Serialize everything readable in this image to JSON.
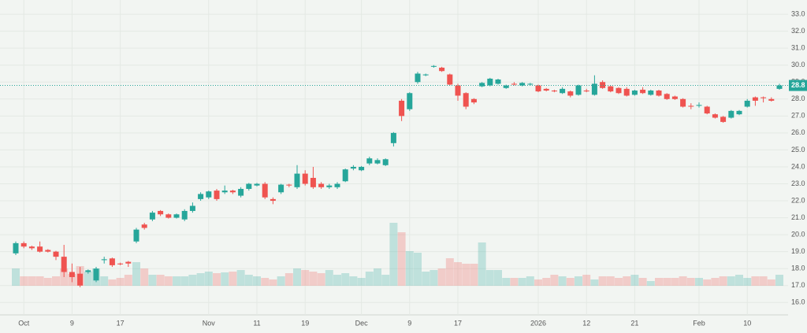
{
  "chart_data": {
    "type": "candlestick",
    "categories": [
      null,
      "Oct",
      null,
      null,
      null,
      null,
      null,
      "9",
      null,
      null,
      null,
      null,
      null,
      "17",
      null,
      null,
      null,
      null,
      null,
      null,
      null,
      null,
      null,
      null,
      "Nov",
      null,
      null,
      null,
      null,
      null,
      "11",
      null,
      null,
      null,
      null,
      null,
      "19",
      null,
      null,
      null,
      null,
      null,
      null,
      "Dec",
      null,
      null,
      null,
      null,
      null,
      "9",
      null,
      null,
      null,
      null,
      null,
      "17",
      null,
      null,
      null,
      null,
      null,
      null,
      null,
      null,
      null,
      "2026",
      null,
      null,
      null,
      null,
      null,
      "12",
      null,
      null,
      null,
      null,
      null,
      "21",
      null,
      null,
      null,
      null,
      null,
      null,
      null,
      "Feb",
      null,
      null,
      null,
      null,
      null,
      "10",
      null,
      null,
      null,
      null
    ],
    "open": [
      18.9,
      19.5,
      19.3,
      19.3,
      19.1,
      19.0,
      18.7,
      17.8,
      17.7,
      17.8,
      17.3,
      18.5,
      18.6,
      18.3,
      18.4,
      19.6,
      20.6,
      20.9,
      21.4,
      21.2,
      21.0,
      20.9,
      21.4,
      22.1,
      22.2,
      22.6,
      22.5,
      22.6,
      22.3,
      22.7,
      22.9,
      23.0,
      22.1,
      22.5,
      22.95,
      22.8,
      23.6,
      23.35,
      23.0,
      22.8,
      22.8,
      23.15,
      23.9,
      23.8,
      24.2,
      24.2,
      24.1,
      25.4,
      27.9,
      27.4,
      29.0,
      29.4,
      29.9,
      29.85,
      29.45,
      28.8,
      28.35,
      28.0,
      28.75,
      28.8,
      28.9,
      28.65,
      28.9,
      28.8,
      28.85,
      28.8,
      28.6,
      28.5,
      28.35,
      28.45,
      28.25,
      28.5,
      28.25,
      29.0,
      28.75,
      28.65,
      28.6,
      28.25,
      28.55,
      28.25,
      28.5,
      28.3,
      28.15,
      28.0,
      27.6,
      27.6,
      27.55,
      27.1,
      26.95,
      26.9,
      27.1,
      27.55,
      28.1,
      28.1,
      28.0,
      28.6
    ],
    "high": [
      19.6,
      19.6,
      19.35,
      19.6,
      19.15,
      19.05,
      19.4,
      18.3,
      18.1,
      17.95,
      18.1,
      18.7,
      18.65,
      18.35,
      18.45,
      20.4,
      20.7,
      21.4,
      21.45,
      21.25,
      21.25,
      21.5,
      21.9,
      22.5,
      22.6,
      22.7,
      22.9,
      22.65,
      22.8,
      23.05,
      23.05,
      23.1,
      22.2,
      23.0,
      23.0,
      24.1,
      23.8,
      24.0,
      23.1,
      23.0,
      23.1,
      23.9,
      24.1,
      24.05,
      24.6,
      24.5,
      24.5,
      26.05,
      28.0,
      28.4,
      29.6,
      29.5,
      30.0,
      29.9,
      29.5,
      28.9,
      28.4,
      28.05,
      29.0,
      29.25,
      29.2,
      28.85,
      29.0,
      29.0,
      28.95,
      28.85,
      28.65,
      28.55,
      28.7,
      28.5,
      28.85,
      28.6,
      29.4,
      29.1,
      28.8,
      28.7,
      28.7,
      28.55,
      28.7,
      28.55,
      28.55,
      28.35,
      28.2,
      28.05,
      27.75,
      27.8,
      27.6,
      27.15,
      27.0,
      27.35,
      27.35,
      28.0,
      28.15,
      28.15,
      28.1,
      28.9
    ],
    "low": [
      18.8,
      19.2,
      19.1,
      18.95,
      18.95,
      18.5,
      17.5,
      17.2,
      16.9,
      17.7,
      17.2,
      18.3,
      18.1,
      18.2,
      18.1,
      19.5,
      20.3,
      20.8,
      21.1,
      20.95,
      20.95,
      20.8,
      21.3,
      22.0,
      22.1,
      22.0,
      22.4,
      22.4,
      22.2,
      22.6,
      22.85,
      22.1,
      21.8,
      22.4,
      22.8,
      22.7,
      22.9,
      22.7,
      22.7,
      22.7,
      22.7,
      23.1,
      23.8,
      23.75,
      24.1,
      24.15,
      24.05,
      25.2,
      26.7,
      27.3,
      28.9,
      29.35,
      29.85,
      29.6,
      28.8,
      27.9,
      27.4,
      27.7,
      28.7,
      28.75,
      28.85,
      28.6,
      28.8,
      28.75,
      28.8,
      28.4,
      28.45,
      28.4,
      28.3,
      28.1,
      28.2,
      28.4,
      28.2,
      28.6,
      28.4,
      28.3,
      28.15,
      28.2,
      28.3,
      28.2,
      28.15,
      27.95,
      27.95,
      27.5,
      27.4,
      27.5,
      27.1,
      26.85,
      26.6,
      26.85,
      27.05,
      27.5,
      27.6,
      27.8,
      27.85,
      28.55
    ],
    "close": [
      19.5,
      19.3,
      19.2,
      19.0,
      19.0,
      18.7,
      17.8,
      17.5,
      17.0,
      17.9,
      18.0,
      18.55,
      18.2,
      18.25,
      18.3,
      20.3,
      20.4,
      21.3,
      21.2,
      21.0,
      21.2,
      21.4,
      21.7,
      22.4,
      22.55,
      22.1,
      22.6,
      22.5,
      22.7,
      23.0,
      23.0,
      22.2,
      22.0,
      22.95,
      22.9,
      23.6,
      23.0,
      22.8,
      22.8,
      22.9,
      23.0,
      23.85,
      24.0,
      24.0,
      24.5,
      24.4,
      24.45,
      26.0,
      27.0,
      28.35,
      29.5,
      29.45,
      29.95,
      29.65,
      28.85,
      28.2,
      27.55,
      27.8,
      28.95,
      29.2,
      29.15,
      28.8,
      28.85,
      28.95,
      28.9,
      28.45,
      28.5,
      28.45,
      28.6,
      28.2,
      28.8,
      28.45,
      28.9,
      28.65,
      28.45,
      28.35,
      28.2,
      28.5,
      28.35,
      28.5,
      28.2,
      28.0,
      28.0,
      27.55,
      27.55,
      27.65,
      27.15,
      26.9,
      26.65,
      27.3,
      27.3,
      27.9,
      27.9,
      28.05,
      27.9,
      28.8
    ],
    "volume": [
      22,
      12,
      12,
      12,
      10,
      12,
      22,
      15,
      25,
      18,
      22,
      12,
      8,
      10,
      14,
      30,
      22,
      14,
      14,
      12,
      12,
      12,
      14,
      16,
      18,
      16,
      17,
      18,
      20,
      14,
      12,
      10,
      8,
      12,
      16,
      22,
      20,
      18,
      16,
      20,
      14,
      16,
      12,
      10,
      18,
      22,
      14,
      80,
      68,
      44,
      42,
      18,
      20,
      22,
      35,
      30,
      28,
      28,
      55,
      20,
      20,
      10,
      10,
      10,
      12,
      8,
      10,
      14,
      12,
      10,
      12,
      14,
      8,
      12,
      12,
      10,
      12,
      14,
      10,
      6,
      10,
      10,
      10,
      12,
      10,
      10,
      8,
      10,
      12,
      12,
      14,
      10,
      12,
      12,
      8,
      14
    ],
    "up_color": "#26a69a",
    "down_color": "#ef5350",
    "ylim": [
      15.27,
      33.84
    ],
    "yticks": [
      {
        "value": 33,
        "label": "33.0"
      },
      {
        "value": 32,
        "label": "32.0"
      },
      {
        "value": 31,
        "label": "31.0"
      },
      {
        "value": 30,
        "label": "30.0"
      },
      {
        "value": 29,
        "label": "29.0"
      },
      {
        "value": 28,
        "label": "28.0"
      },
      {
        "value": 27,
        "label": "27.0"
      },
      {
        "value": 26,
        "label": "26.0"
      },
      {
        "value": 25,
        "label": "25.0"
      },
      {
        "value": 24,
        "label": "24.0"
      },
      {
        "value": 23,
        "label": "23.0"
      },
      {
        "value": 22,
        "label": "22.0"
      },
      {
        "value": 21,
        "label": "21.0"
      },
      {
        "value": 20,
        "label": "20.0"
      },
      {
        "value": 19,
        "label": "19.0"
      },
      {
        "value": 18,
        "label": "18.0"
      },
      {
        "value": 17,
        "label": "17.0"
      },
      {
        "value": 16,
        "label": "16.0"
      }
    ],
    "last_price": {
      "value": 28.8,
      "label": "28.8"
    },
    "grid": true
  }
}
